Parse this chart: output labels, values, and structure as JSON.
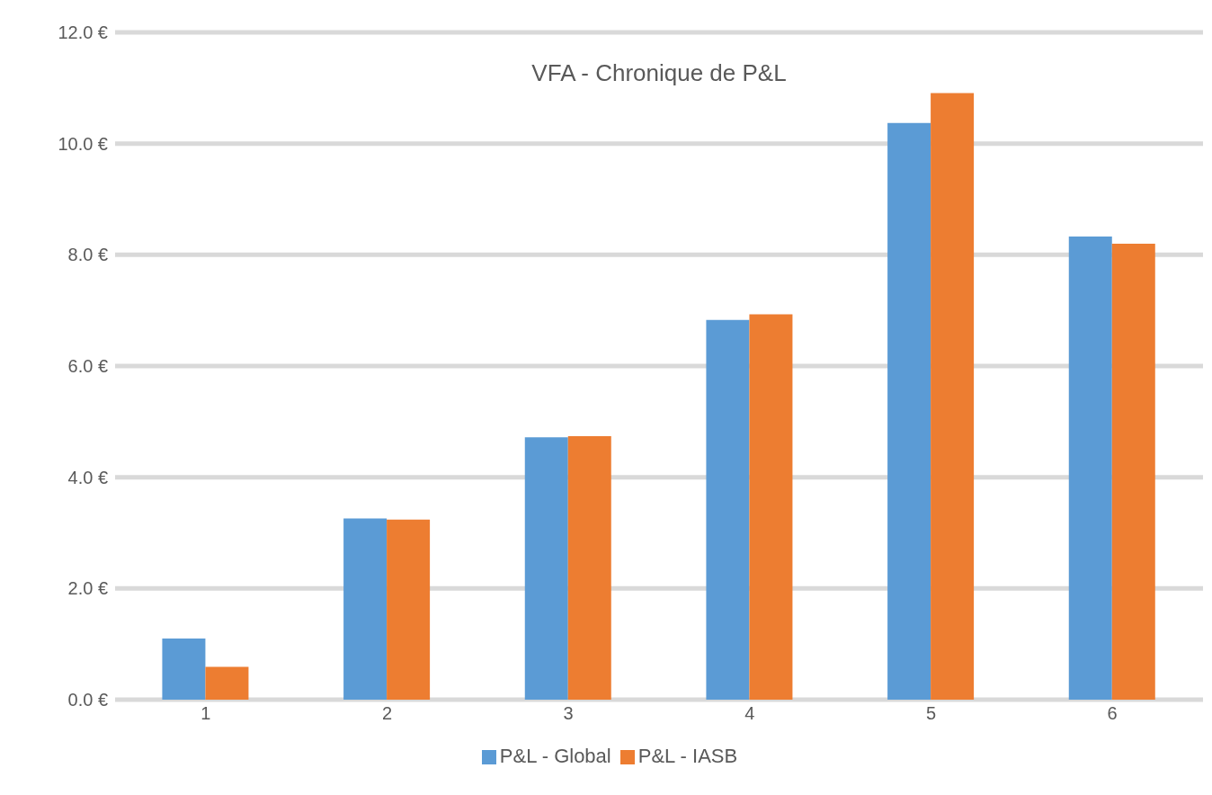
{
  "chart_data": {
    "type": "bar",
    "title": "VFA - Chronique de P&L",
    "categories": [
      "1",
      "2",
      "3",
      "4",
      "5",
      "6"
    ],
    "series": [
      {
        "name": "P&L - Global",
        "color": "#5b9bd5",
        "values": [
          1.1,
          3.26,
          4.72,
          6.83,
          10.37,
          8.33
        ]
      },
      {
        "name": "P&L - IASB",
        "color": "#ed7d31",
        "values": [
          0.59,
          3.24,
          4.74,
          6.93,
          10.91,
          8.2
        ]
      }
    ],
    "ylim": [
      0,
      12
    ],
    "yticks": [
      {
        "value": 0,
        "label": "0.0 €"
      },
      {
        "value": 2,
        "label": "2.0 €"
      },
      {
        "value": 4,
        "label": "4.0 €"
      },
      {
        "value": 6,
        "label": "6.0 €"
      },
      {
        "value": 8,
        "label": "8.0 €"
      },
      {
        "value": 10,
        "label": "10.0 €"
      },
      {
        "value": 12,
        "label": "12.0 €"
      }
    ],
    "grid": "y",
    "legend": "bottom"
  }
}
